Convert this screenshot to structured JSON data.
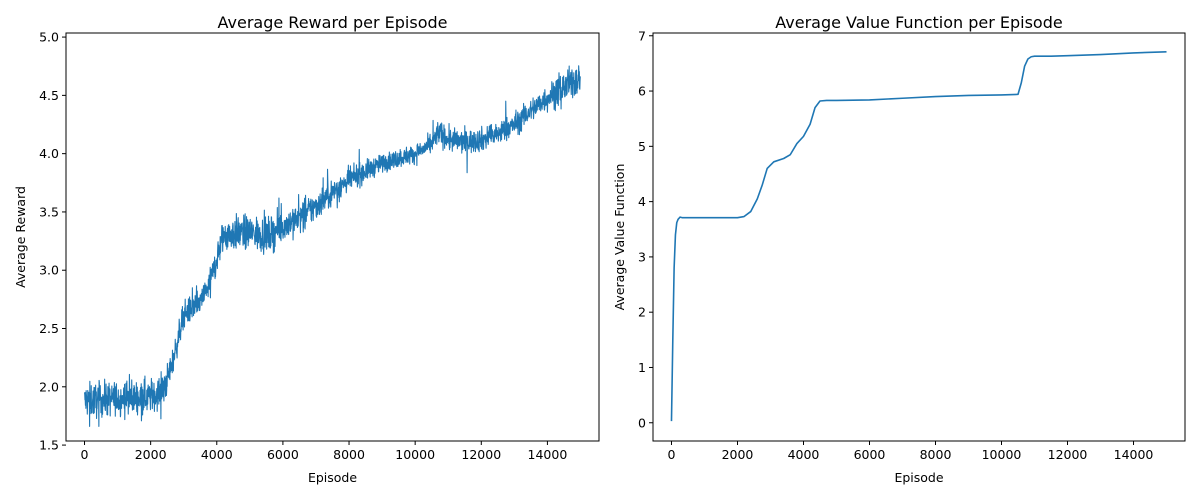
{
  "chart_data": [
    {
      "type": "line",
      "title": "Average Reward per Episode",
      "xlabel": "Episode",
      "ylabel": "Average Reward",
      "xlim": [
        -560,
        15560
      ],
      "ylim": [
        1.535,
        5.035
      ],
      "xticks": [
        0,
        2000,
        4000,
        6000,
        8000,
        10000,
        12000,
        14000
      ],
      "yticks": [
        1.5,
        2.0,
        2.5,
        3.0,
        3.5,
        4.0,
        4.5,
        5.0
      ],
      "grid": false,
      "line_color": "#1f77b4",
      "series": [
        {
          "x": [
            0,
            1000,
            2000,
            2400,
            2700,
            3000,
            3500,
            3800,
            4200,
            4600,
            5000,
            5600,
            6000,
            6500,
            7000,
            7500,
            8000,
            8500,
            9000,
            9500,
            10000,
            10500,
            10700,
            11000,
            11500,
            12000,
            12500,
            13000,
            13500,
            14000,
            14500,
            15000
          ],
          "y": [
            1.88,
            1.9,
            1.92,
            1.97,
            2.25,
            2.62,
            2.72,
            2.9,
            3.3,
            3.32,
            3.32,
            3.3,
            3.38,
            3.45,
            3.55,
            3.67,
            3.77,
            3.85,
            3.92,
            3.96,
            4.0,
            4.08,
            4.19,
            4.12,
            4.1,
            4.12,
            4.17,
            4.25,
            4.37,
            4.48,
            4.57,
            4.65
          ],
          "band": [
            0.13,
            0.13,
            0.13,
            0.12,
            0.1,
            0.1,
            0.1,
            0.1,
            0.13,
            0.13,
            0.13,
            0.13,
            0.12,
            0.12,
            0.11,
            0.1,
            0.09,
            0.08,
            0.07,
            0.07,
            0.07,
            0.07,
            0.09,
            0.09,
            0.09,
            0.09,
            0.09,
            0.09,
            0.09,
            0.1,
            0.11,
            0.13
          ]
        }
      ]
    },
    {
      "type": "line",
      "title": "Average Value Function per Episode",
      "xlabel": "Episode",
      "ylabel": "Average Value Function",
      "xlim": [
        -560,
        15560
      ],
      "ylim": [
        -0.33,
        7.05
      ],
      "xticks": [
        0,
        2000,
        4000,
        6000,
        8000,
        10000,
        12000,
        14000
      ],
      "yticks": [
        0,
        1,
        2,
        3,
        4,
        5,
        6,
        7
      ],
      "grid": false,
      "line_color": "#1f77b4",
      "series": [
        {
          "x": [
            0,
            40,
            80,
            120,
            160,
            200,
            260,
            320,
            500,
            1000,
            1500,
            2000,
            2200,
            2400,
            2600,
            2750,
            2900,
            3100,
            3400,
            3600,
            3800,
            4000,
            4200,
            4350,
            4500,
            4700,
            5000,
            6000,
            7000,
            8000,
            9000,
            10000,
            10500,
            10600,
            10700,
            10800,
            10900,
            11000,
            11500,
            12000,
            13000,
            14000,
            15000
          ],
          "y": [
            0.03,
            1.5,
            2.8,
            3.4,
            3.62,
            3.68,
            3.72,
            3.71,
            3.71,
            3.71,
            3.71,
            3.71,
            3.73,
            3.82,
            4.05,
            4.3,
            4.6,
            4.72,
            4.78,
            4.85,
            5.05,
            5.18,
            5.4,
            5.7,
            5.82,
            5.83,
            5.83,
            5.84,
            5.87,
            5.9,
            5.92,
            5.93,
            5.94,
            6.15,
            6.45,
            6.58,
            6.62,
            6.63,
            6.63,
            6.64,
            6.66,
            6.69,
            6.71
          ]
        }
      ]
    }
  ]
}
